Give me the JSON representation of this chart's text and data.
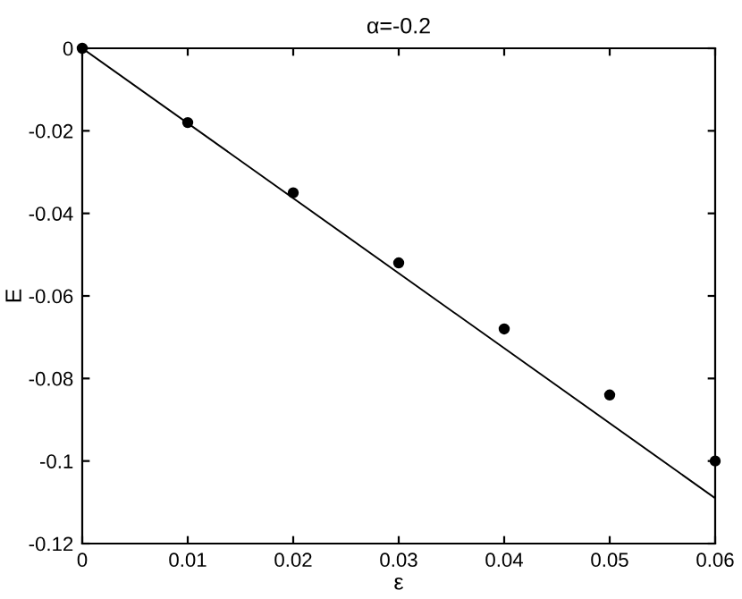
{
  "chart_data": {
    "type": "scatter",
    "title": "α=-0.2",
    "xlabel": "ε",
    "ylabel": "E",
    "x": [
      0,
      0.01,
      0.02,
      0.03,
      0.04,
      0.05,
      0.06
    ],
    "series": [
      {
        "color": "#000000",
        "marker": "circle",
        "values": [
          0,
          -0.018,
          -0.035,
          -0.052,
          -0.068,
          -0.084,
          -0.1
        ]
      },
      {
        "type": "line",
        "color": "#000000",
        "x": [
          0,
          0.06
        ],
        "values": [
          0,
          -0.109
        ]
      }
    ],
    "xlim": [
      0,
      0.06
    ],
    "ylim": [
      -0.12,
      0
    ],
    "xticks": [
      0,
      0.01,
      0.02,
      0.03,
      0.04,
      0.05,
      0.06
    ],
    "yticks": [
      -0.12,
      -0.1,
      -0.08,
      -0.06,
      -0.04,
      -0.02,
      0
    ],
    "grid": false,
    "legend": false
  }
}
